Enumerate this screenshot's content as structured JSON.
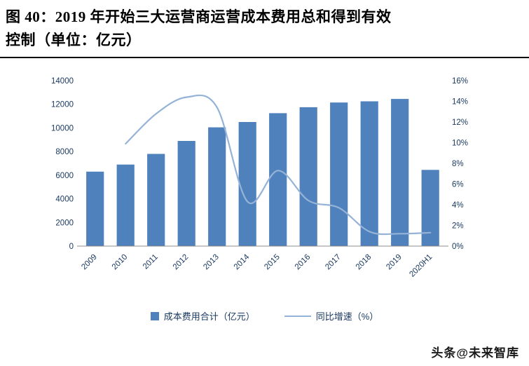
{
  "figure": {
    "title_line1": "图 40：2019 年开始三大运营商运营成本费用总和得到有效",
    "title_line2": "控制（单位：亿元）"
  },
  "watermark": "头条@未来智库",
  "colors": {
    "bar": "#4F81BD",
    "line": "#95B3D7",
    "axis_text": "#17375E",
    "axis_line": "#8c8c8c"
  },
  "chart_data": {
    "type": "bar",
    "subtype": "bar+line combo, dual axis",
    "categories": [
      "2009",
      "2010",
      "2011",
      "2012",
      "2013",
      "2014",
      "2015",
      "2016",
      "2017",
      "2018",
      "2019",
      "2020H1"
    ],
    "series": [
      {
        "name": "成本费用合计（亿元）",
        "type": "bar",
        "axis": "left",
        "values": [
          6300,
          6900,
          7800,
          8900,
          10050,
          10500,
          11250,
          11750,
          12150,
          12250,
          12450,
          6450
        ]
      },
      {
        "name": "同比增速（%）",
        "type": "line",
        "axis": "right",
        "values": [
          null,
          9.9,
          12.8,
          14.4,
          13.4,
          4.3,
          7.3,
          4.4,
          3.7,
          1.4,
          1.2,
          1.3
        ]
      }
    ],
    "left_axis": {
      "min": 0,
      "max": 14000,
      "step": 2000
    },
    "right_axis": {
      "min": 0,
      "max": 16,
      "step": 2,
      "suffix": "%"
    },
    "grid": false,
    "legend_position": "bottom"
  }
}
